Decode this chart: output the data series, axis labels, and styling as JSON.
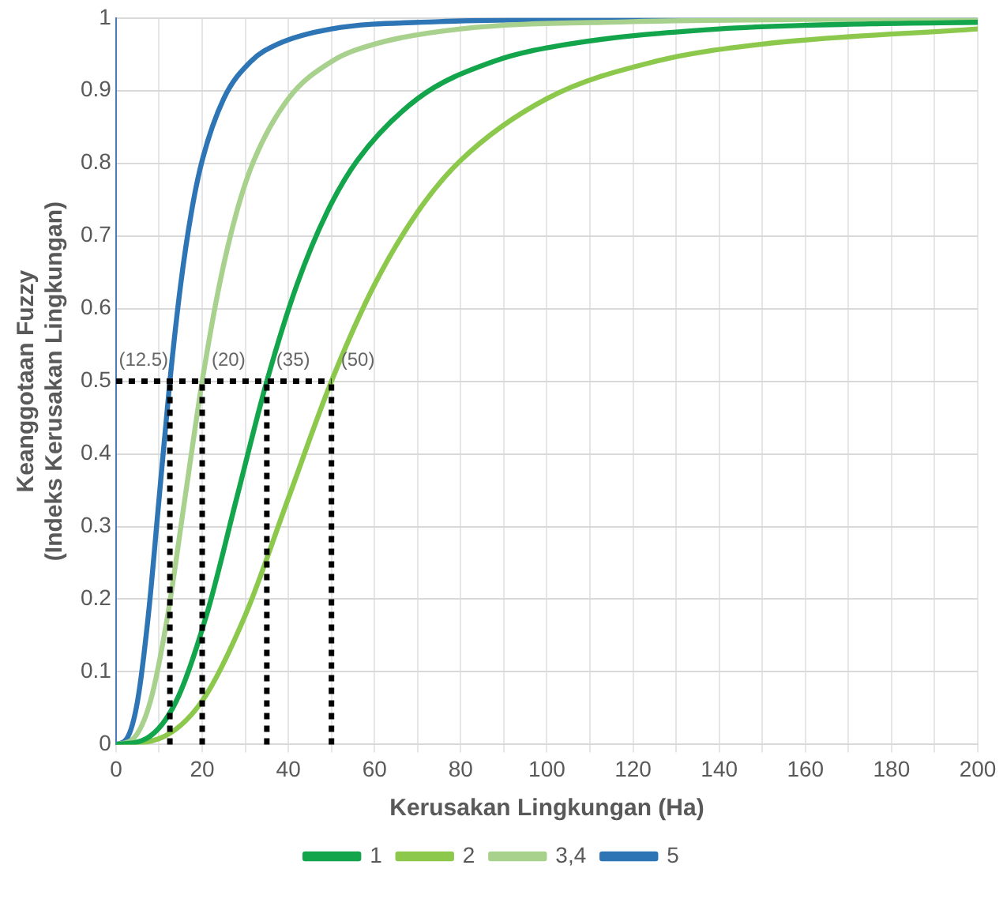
{
  "chart_data": {
    "type": "line",
    "xlabel": "Kerusakan Lingkungan (Ha)",
    "ylabel": "Keanggotaan Fuzzy\n(Indeks Kerusakan Lingkungan)",
    "series": [
      {
        "name": "1",
        "color": "#13a54b",
        "x": [
          0,
          7,
          14,
          21,
          28,
          35,
          42,
          49,
          56,
          70,
          87.5,
          105,
          140,
          175,
          200
        ],
        "values": [
          0,
          0.008,
          0.06,
          0.178,
          0.339,
          0.5,
          0.633,
          0.733,
          0.804,
          0.889,
          0.94,
          0.964,
          0.985,
          0.992,
          0.994
        ]
      },
      {
        "name": "2",
        "color": "#8cc84b",
        "x": [
          0,
          10,
          20,
          30,
          40,
          50,
          60,
          70,
          80,
          100,
          125,
          150,
          200
        ],
        "values": [
          0,
          0.008,
          0.06,
          0.178,
          0.339,
          0.5,
          0.633,
          0.733,
          0.804,
          0.889,
          0.94,
          0.964,
          0.985
        ]
      },
      {
        "name": "3,4",
        "color": "#a9d18e",
        "x": [
          0,
          4,
          8,
          12,
          16,
          20,
          24,
          28,
          32,
          40,
          50,
          60,
          80,
          120,
          160,
          200
        ],
        "values": [
          0,
          0.008,
          0.06,
          0.178,
          0.339,
          0.5,
          0.633,
          0.733,
          0.804,
          0.889,
          0.94,
          0.964,
          0.985,
          0.995,
          0.998,
          0.999
        ]
      },
      {
        "name": "5",
        "color": "#2e75b6",
        "x": [
          0,
          2.5,
          5,
          7.5,
          10,
          12.5,
          15,
          17.5,
          20,
          25,
          31.25,
          37.5,
          50,
          75,
          100,
          125,
          200
        ],
        "values": [
          0,
          0.008,
          0.06,
          0.178,
          0.339,
          0.5,
          0.633,
          0.733,
          0.804,
          0.889,
          0.94,
          0.964,
          0.985,
          0.995,
          0.998,
          0.999,
          1
        ]
      }
    ],
    "xlim": [
      0,
      200
    ],
    "xticks": [
      0,
      {
        "value": 10,
        "label": null
      },
      20,
      {
        "value": 30,
        "label": null
      },
      40,
      {
        "value": 50,
        "label": null
      },
      60,
      {
        "value": 70,
        "label": null
      },
      80,
      {
        "value": 90,
        "label": null
      },
      100,
      {
        "value": 110,
        "label": null
      },
      120,
      {
        "value": 130,
        "label": null
      },
      140,
      {
        "value": 150,
        "label": null
      },
      160,
      {
        "value": 170,
        "label": null
      },
      180,
      {
        "value": 190,
        "label": null
      },
      200
    ],
    "ylim": [
      0,
      1
    ],
    "yticks": [
      0,
      0.1,
      0.2,
      0.3,
      0.4,
      0.5,
      0.6,
      0.7,
      0.8,
      0.9,
      1
    ],
    "ref_lines": [
      {
        "axis": "y",
        "value": 0.5,
        "line_style": "dotted",
        "color": "#000000"
      },
      {
        "axis": "x",
        "value": 12.5,
        "label": "(12.5)",
        "line_style": "dotted",
        "color": "#000000"
      },
      {
        "axis": "x",
        "value": 20,
        "label": "(20)",
        "line_style": "dotted",
        "color": "#000000"
      },
      {
        "axis": "x",
        "value": 35,
        "label": "(35)",
        "line_style": "dotted",
        "color": "#000000"
      },
      {
        "axis": "x",
        "value": 50,
        "label": "(50)",
        "line_style": "dotted",
        "color": "#000000"
      }
    ],
    "grid": true,
    "legend": "bottom",
    "marker": "none",
    "line_style": "solid"
  }
}
